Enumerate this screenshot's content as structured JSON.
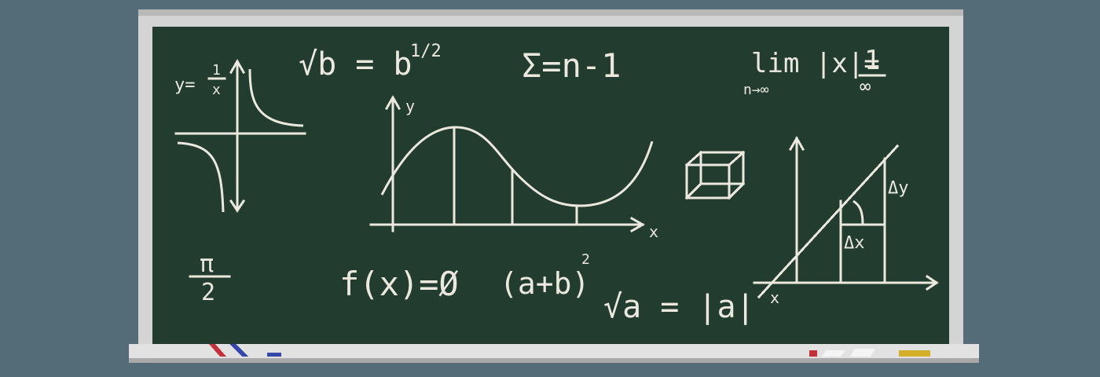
{
  "formulas": {
    "hyperbola_lhs": "y=",
    "hyperbola_num": "1",
    "hyperbola_den": "x",
    "sqrt_b": "√b = b",
    "sqrt_b_exp": "1/2",
    "sum": "Σ=n-1",
    "limit_main": "lim |x|=",
    "limit_value": "1",
    "limit_sub": "n→∞",
    "limit_infinity": "∞",
    "pi_num": "π",
    "pi_den": "2",
    "fx": "f(x)=Ø",
    "ab_squared": "(a+b)",
    "ab_exp": "2",
    "sqrt_a": "√a = |a|"
  },
  "graphs": {
    "curve_y_label": "y",
    "curve_x_label": "x",
    "triangle_dy": "Δy",
    "triangle_dx": "Δx",
    "triangle_alpha": "x"
  },
  "colors": {
    "background": "#546c78",
    "frame": "#d4d4d4",
    "board": "#223d30",
    "chalk": "#ece8de",
    "chalk_red": "#c2303a",
    "chalk_blue": "#3446a8",
    "chalk_yellow": "#d4b02a"
  }
}
